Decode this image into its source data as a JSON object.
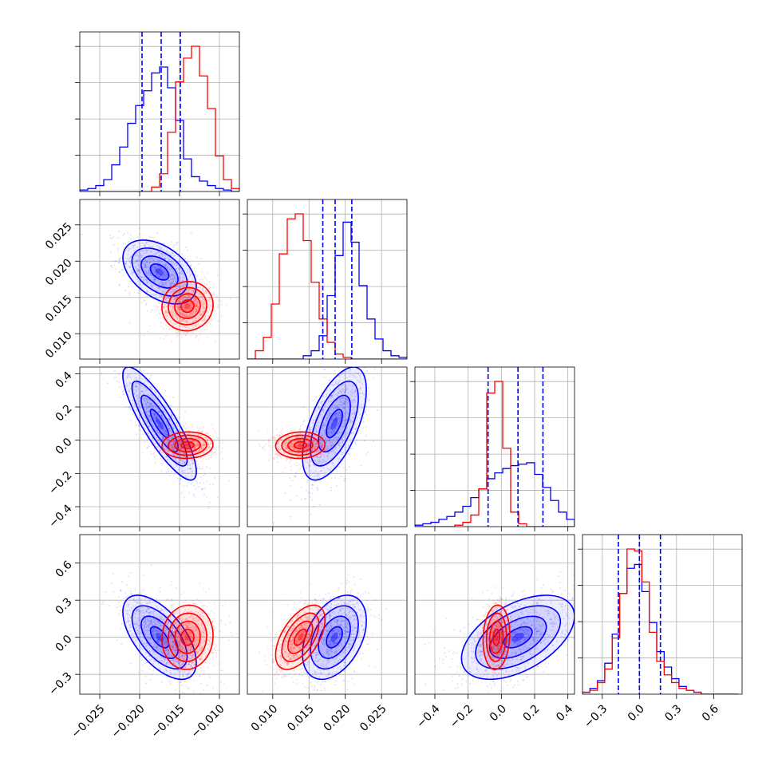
{
  "chart_data": {
    "type": "corner",
    "parameters": 4,
    "grid": true,
    "colors": {
      "blue": "#0000ff",
      "red": "#ff0000"
    },
    "ranges": [
      [
        -0.0275,
        -0.0075
      ],
      [
        0.0065,
        0.0285
      ],
      [
        -0.52,
        0.44
      ],
      [
        -0.46,
        0.83
      ]
    ],
    "ticks": [
      {
        "values": [
          -0.025,
          -0.02,
          -0.015,
          -0.01
        ],
        "labels": [
          "−0.025",
          "−0.020",
          "−0.015",
          "−0.010"
        ]
      },
      {
        "values": [
          0.01,
          0.015,
          0.02,
          0.025
        ],
        "labels": [
          "0.010",
          "0.015",
          "0.020",
          "0.025"
        ]
      },
      {
        "values": [
          -0.4,
          -0.2,
          0.0,
          0.2,
          0.4
        ],
        "labels": [
          "−0.4",
          "−0.2",
          "0.0",
          "0.2",
          "0.4"
        ]
      },
      {
        "values": [
          -0.3,
          0.0,
          0.3,
          0.6
        ],
        "labels": [
          "−0.3",
          "0.0",
          "0.3",
          "0.6"
        ]
      }
    ],
    "series": [
      {
        "color": "#0000ff",
        "means": [
          -0.0175,
          0.0185,
          0.1,
          0.0
        ],
        "sigmas": [
          0.0023,
          0.0022,
          0.17,
          0.17
        ],
        "correlations": [
          [
            0,
            1,
            -0.45
          ],
          [
            0,
            2,
            -0.85
          ],
          [
            0,
            3,
            -0.6
          ],
          [
            1,
            2,
            0.6
          ],
          [
            1,
            3,
            0.4
          ],
          [
            2,
            3,
            0.5
          ]
        ]
      },
      {
        "color": "#ff0000",
        "means": [
          -0.014,
          0.0138,
          -0.03,
          0.0
        ],
        "sigmas": [
          0.0016,
          0.0017,
          0.04,
          0.13
        ],
        "correlations": [
          [
            0,
            1,
            0.05
          ],
          [
            0,
            2,
            0.05
          ],
          [
            0,
            3,
            0.05
          ],
          [
            1,
            2,
            0.05
          ],
          [
            1,
            3,
            0.55
          ],
          [
            2,
            3,
            0.1
          ]
        ]
      }
    ],
    "quantile_lines": {
      "color": "#0000ff",
      "values": [
        [
          -0.0197,
          -0.0173,
          -0.0149
        ],
        [
          0.0169,
          0.0186,
          0.0209
        ],
        [
          -0.08,
          0.1,
          0.25
        ],
        [
          -0.17,
          0.0,
          0.17
        ]
      ]
    },
    "histograms": [
      {
        "bin_edges": [
          -0.0275,
          -0.0265,
          -0.0255,
          -0.0245,
          -0.0235,
          -0.0225,
          -0.0215,
          -0.0205,
          -0.0195,
          -0.0185,
          -0.0175,
          -0.0165,
          -0.0155,
          -0.0145,
          -0.0135,
          -0.0125,
          -0.0115,
          -0.0105,
          -0.0095,
          -0.0085,
          -0.0075
        ],
        "blue": [
          1,
          2,
          4,
          8,
          18,
          30,
          46,
          58,
          68,
          80,
          84,
          70,
          48,
          22,
          10,
          7,
          4,
          2,
          1,
          0
        ],
        "red": [
          0,
          0,
          0,
          0,
          0,
          0,
          0,
          0,
          0,
          3,
          12,
          40,
          74,
          90,
          98,
          78,
          56,
          24,
          8,
          2
        ]
      },
      {
        "bin_edges": [
          0.0065,
          0.0076,
          0.0087,
          0.0098,
          0.0109,
          0.012,
          0.0131,
          0.0142,
          0.0153,
          0.0164,
          0.0175,
          0.0186,
          0.0197,
          0.0208,
          0.0219,
          0.023,
          0.0241,
          0.0252,
          0.0263,
          0.0274,
          0.0285
        ],
        "blue": [
          0,
          0,
          0,
          0,
          0,
          0,
          0,
          2,
          5,
          14,
          38,
          62,
          82,
          70,
          44,
          24,
          12,
          5,
          2,
          1
        ],
        "red": [
          0,
          5,
          13,
          33,
          63,
          84,
          87,
          71,
          46,
          24,
          10,
          3,
          1,
          0,
          0,
          0,
          0,
          0,
          0,
          0
        ]
      },
      {
        "bin_edges": [
          -0.52,
          -0.472,
          -0.424,
          -0.376,
          -0.328,
          -0.28,
          -0.232,
          -0.184,
          -0.136,
          -0.088,
          -0.04,
          0.008,
          0.056,
          0.104,
          0.152,
          0.2,
          0.248,
          0.296,
          0.344,
          0.392,
          0.44
        ],
        "blue": [
          1,
          2,
          3,
          5,
          7,
          10,
          14,
          20,
          26,
          33,
          37,
          40,
          42,
          43,
          44,
          36,
          27,
          18,
          10,
          5
        ],
        "red": [
          0,
          0,
          0,
          0,
          0,
          1,
          3,
          8,
          26,
          92,
          100,
          54,
          10,
          2,
          0,
          0,
          0,
          0,
          0,
          0
        ]
      },
      {
        "bin_edges": [
          -0.46,
          -0.4,
          -0.34,
          -0.28,
          -0.22,
          -0.16,
          -0.1,
          -0.04,
          0.02,
          0.08,
          0.14,
          0.2,
          0.26,
          0.32,
          0.38,
          0.44,
          0.5,
          0.56,
          0.62,
          0.68,
          0.74,
          0.8
        ],
        "blue": [
          1,
          3,
          7,
          16,
          31,
          52,
          65,
          67,
          53,
          37,
          22,
          14,
          8,
          4,
          2,
          1,
          0,
          0,
          0,
          0,
          0
        ],
        "red": [
          1,
          2,
          6,
          13,
          29,
          52,
          75,
          74,
          58,
          32,
          17,
          10,
          6,
          3,
          2,
          1,
          0,
          0,
          0,
          0,
          0
        ]
      }
    ]
  }
}
